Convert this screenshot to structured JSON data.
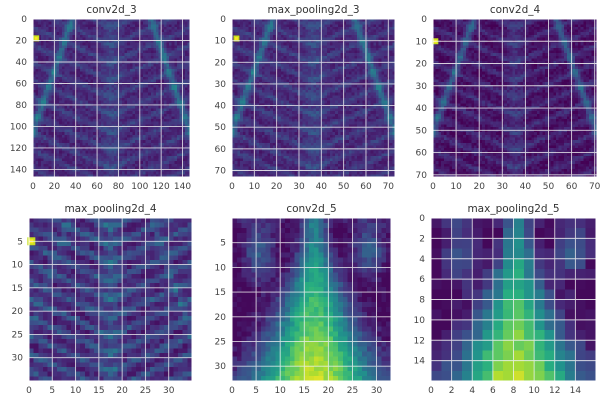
{
  "figure": {
    "colors": {
      "grid": "#f2f2f2",
      "spine": "#ffffff",
      "tick_text": "#444444",
      "title_text": "#333333"
    },
    "colormap": [
      "#440154",
      "#472d7b",
      "#3b528b",
      "#2c728e",
      "#21918c",
      "#28ae80",
      "#5ec962",
      "#addc30",
      "#fde725"
    ]
  },
  "chart_data": [
    {
      "type": "heatmap",
      "panel": "top-left",
      "title": "conv2d_3",
      "xlim": [
        0,
        147
      ],
      "ylim": [
        147,
        0
      ],
      "xticks": [
        0,
        20,
        40,
        60,
        80,
        100,
        120,
        140
      ],
      "yticks": [
        0,
        20,
        40,
        60,
        80,
        100,
        120,
        140
      ],
      "xgrid": [
        0,
        20,
        40,
        60,
        80,
        100,
        120,
        140
      ],
      "ygrid": [
        0,
        20,
        40,
        60,
        80,
        100,
        120,
        140
      ],
      "grid": true,
      "pattern": "edge-ribs",
      "hotspot": [
        3,
        18
      ]
    },
    {
      "type": "heatmap",
      "panel": "top-middle",
      "title": "max_pooling2d_3",
      "xlim": [
        0,
        73
      ],
      "ylim": [
        73,
        0
      ],
      "xticks": [
        0,
        10,
        20,
        30,
        40,
        50,
        60,
        70
      ],
      "yticks": [
        0,
        10,
        20,
        30,
        40,
        50,
        60,
        70
      ],
      "xgrid": [
        0,
        10,
        20,
        30,
        40,
        50,
        60,
        70
      ],
      "ygrid": [
        0,
        10,
        20,
        30,
        40,
        50,
        60,
        70
      ],
      "grid": true,
      "pattern": "edge-ribs",
      "hotspot": [
        2,
        9
      ]
    },
    {
      "type": "heatmap",
      "panel": "top-right",
      "title": "conv2d_4",
      "xlim": [
        0,
        71
      ],
      "ylim": [
        71,
        0
      ],
      "xticks": [
        0,
        10,
        20,
        30,
        40,
        50,
        60,
        70
      ],
      "yticks": [
        0,
        10,
        20,
        30,
        40,
        50,
        60,
        70
      ],
      "xgrid": [
        0,
        10,
        20,
        30,
        40,
        50,
        60,
        70
      ],
      "ygrid": [
        0,
        10,
        20,
        30,
        40,
        50,
        60,
        70
      ],
      "grid": true,
      "pattern": "edge-ribs-dark",
      "hotspot": [
        1,
        10
      ]
    },
    {
      "type": "heatmap",
      "panel": "bottom-left",
      "title": "max_pooling2d_4",
      "xlim": [
        0,
        35
      ],
      "ylim": [
        35,
        0
      ],
      "xticks": [
        0,
        5,
        10,
        15,
        20,
        25,
        30
      ],
      "yticks": [
        5,
        10,
        15,
        20,
        25,
        30
      ],
      "xgrid": [
        0,
        5,
        10,
        15,
        20,
        25,
        30,
        35
      ],
      "ygrid": [
        0,
        5,
        10,
        15,
        20,
        25,
        30
      ],
      "grid": true,
      "pattern": "blocky-ribs",
      "hotspot": [
        0.5,
        5
      ]
    },
    {
      "type": "heatmap",
      "panel": "bottom-middle",
      "title": "conv2d_5",
      "xlim": [
        0,
        33
      ],
      "ylim": [
        33,
        0
      ],
      "xticks": [
        0,
        5,
        10,
        15,
        20,
        25,
        30
      ],
      "yticks": [
        5,
        10,
        15,
        20,
        25,
        30
      ],
      "xgrid": [
        0,
        5,
        10,
        15,
        20,
        25,
        30
      ],
      "ygrid": [
        0,
        5,
        10,
        15,
        20,
        25,
        30
      ],
      "grid": true,
      "pattern": "center-blob",
      "hotspot": null
    },
    {
      "type": "heatmap",
      "panel": "bottom-right",
      "title": "max_pooling2d_5",
      "xlim": [
        0,
        16
      ],
      "ylim": [
        16,
        0
      ],
      "xticks": [
        0,
        2,
        4,
        6,
        8,
        10,
        12,
        14
      ],
      "yticks": [
        0,
        2,
        4,
        6,
        8,
        10,
        12,
        14
      ],
      "xgrid": [
        0,
        2,
        4,
        6,
        8,
        10,
        12,
        14
      ],
      "ygrid": [
        0,
        2,
        4,
        6,
        8,
        10,
        12,
        14
      ],
      "grid": true,
      "pattern": "center-blob-coarse",
      "hotspot": null
    }
  ]
}
